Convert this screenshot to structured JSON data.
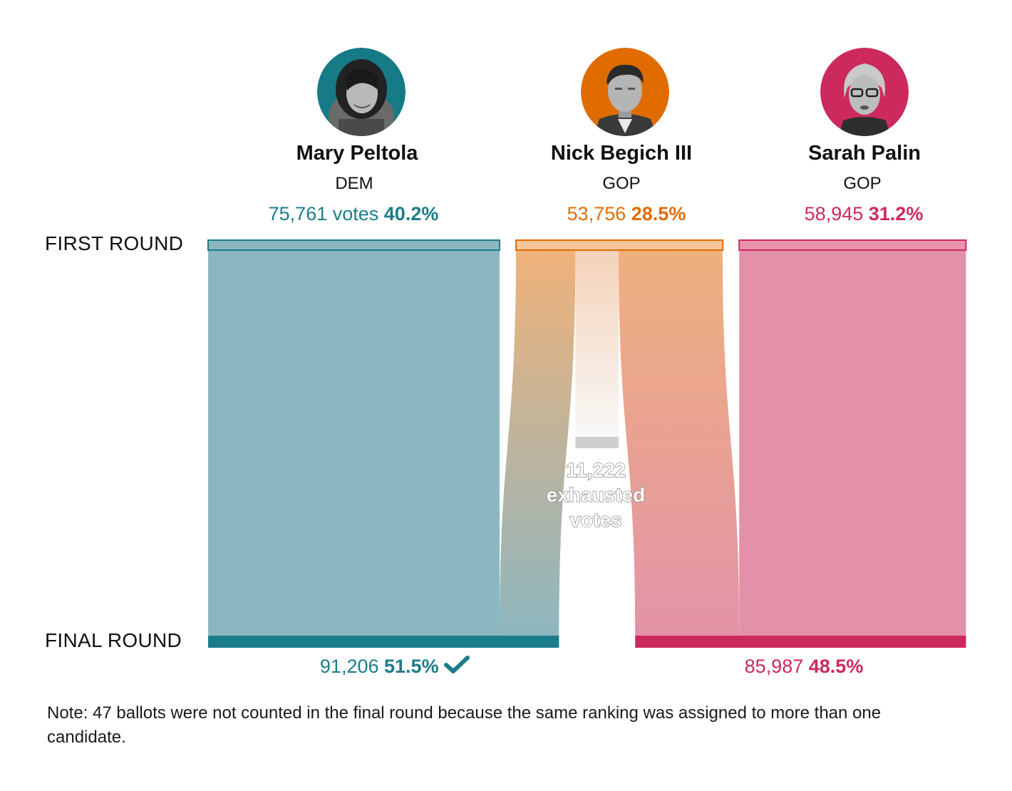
{
  "candidates": [
    {
      "name": "Mary Peltola",
      "party": "DEM",
      "votes": "75,761 votes",
      "pct": "40.2%",
      "color": "#1c7d8a",
      "icon": "portrait-woman-dark-hair"
    },
    {
      "name": "Nick Begich III",
      "party": "GOP",
      "votes": "53,756",
      "pct": "28.5%",
      "color": "#e06c00",
      "icon": "portrait-man-suit"
    },
    {
      "name": "Sarah Palin",
      "party": "GOP",
      "votes": "58,945",
      "pct": "31.2%",
      "color": "#cc2a5d",
      "icon": "portrait-woman-glasses"
    }
  ],
  "rounds": {
    "first": "FIRST ROUND",
    "final": "FINAL ROUND"
  },
  "final_results": [
    {
      "votes": "91,206",
      "pct": "51.5%",
      "winner_icon": "checkmark-icon",
      "color": "#1c7d8a"
    },
    {
      "votes": "85,987",
      "pct": "48.5%",
      "color": "#cc2a5d"
    }
  ],
  "exhausted": {
    "line1": "11,222",
    "line2": "exhausted",
    "line3": "votes"
  },
  "note": "Note: 47 ballots were not counted in the final round because the same ranking was assigned to more than one candidate.",
  "chart_data": {
    "type": "sankey",
    "first_round": [
      {
        "candidate": "Mary Peltola",
        "votes": 75761,
        "pct": 40.2
      },
      {
        "candidate": "Nick Begich III",
        "votes": 53756,
        "pct": 28.5
      },
      {
        "candidate": "Sarah Palin",
        "votes": 58945,
        "pct": 31.2
      }
    ],
    "final_round": [
      {
        "candidate": "Mary Peltola",
        "votes": 91206,
        "pct": 51.5,
        "winner": true
      },
      {
        "candidate": "Sarah Palin",
        "votes": 85987,
        "pct": 48.5
      }
    ],
    "flows": [
      {
        "from": "Mary Peltola",
        "to": "Mary Peltola",
        "votes": 75761
      },
      {
        "from": "Sarah Palin",
        "to": "Sarah Palin",
        "votes": 58945
      },
      {
        "from": "Nick Begich III",
        "to": "Mary Peltola",
        "votes": 15445
      },
      {
        "from": "Nick Begich III",
        "to": "Exhausted",
        "votes": 11222
      },
      {
        "from": "Nick Begich III",
        "to": "Sarah Palin",
        "votes": 27042
      }
    ],
    "exhausted_votes": 11222
  }
}
